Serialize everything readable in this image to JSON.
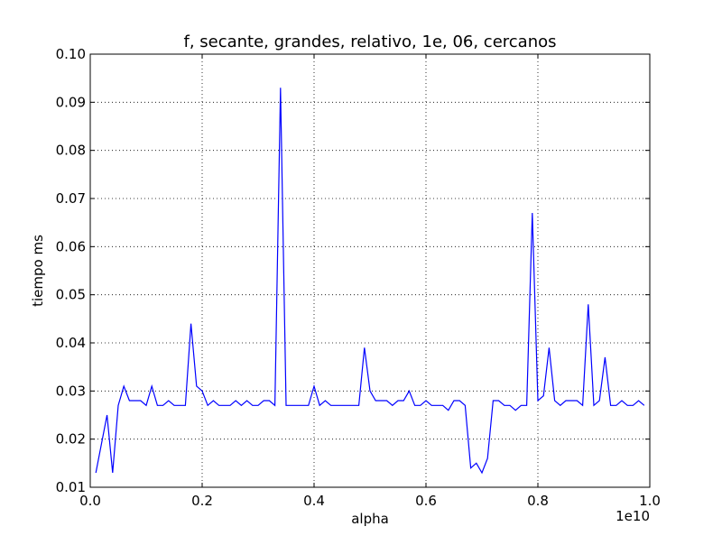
{
  "chart_data": {
    "type": "line",
    "title": "f, secante, grandes, relativo, 1e, 06, cercanos",
    "xlabel": "alpha",
    "ylabel": "tiempo ms",
    "x_offset_text": "1e10",
    "xlim": [
      0.0,
      1.0
    ],
    "ylim": [
      0.01,
      0.1
    ],
    "xticks": [
      0.0,
      0.2,
      0.4,
      0.6,
      0.8,
      1.0
    ],
    "xtick_labels": [
      "0.0",
      "0.2",
      "0.4",
      "0.6",
      "0.8",
      "1.0"
    ],
    "yticks": [
      0.01,
      0.02,
      0.03,
      0.04,
      0.05,
      0.06,
      0.07,
      0.08,
      0.09,
      0.1
    ],
    "ytick_labels": [
      "0.01",
      "0.02",
      "0.03",
      "0.04",
      "0.05",
      "0.06",
      "0.07",
      "0.08",
      "0.09",
      "0.10"
    ],
    "grid": true,
    "line_color": "#0000ff",
    "series": [
      {
        "x": [
          0.01,
          0.02,
          0.03,
          0.04,
          0.05,
          0.06,
          0.07,
          0.08,
          0.09,
          0.1,
          0.11,
          0.12,
          0.13,
          0.14,
          0.15,
          0.16,
          0.17,
          0.18,
          0.19,
          0.2,
          0.21,
          0.22,
          0.23,
          0.24,
          0.25,
          0.26,
          0.27,
          0.28,
          0.29,
          0.3,
          0.31,
          0.32,
          0.33,
          0.34,
          0.35,
          0.36,
          0.37,
          0.38,
          0.39,
          0.4,
          0.41,
          0.42,
          0.43,
          0.44,
          0.45,
          0.46,
          0.47,
          0.48,
          0.49,
          0.5,
          0.51,
          0.52,
          0.53,
          0.54,
          0.55,
          0.56,
          0.57,
          0.58,
          0.59,
          0.6,
          0.61,
          0.62,
          0.63,
          0.64,
          0.65,
          0.66,
          0.67,
          0.68,
          0.69,
          0.7,
          0.71,
          0.72,
          0.73,
          0.74,
          0.75,
          0.76,
          0.77,
          0.78,
          0.79,
          0.8,
          0.81,
          0.82,
          0.83,
          0.84,
          0.85,
          0.86,
          0.87,
          0.88,
          0.89,
          0.9,
          0.91,
          0.92,
          0.93,
          0.94,
          0.95,
          0.96,
          0.97,
          0.98,
          0.99
        ],
        "y": [
          0.013,
          0.019,
          0.025,
          0.013,
          0.027,
          0.031,
          0.028,
          0.028,
          0.028,
          0.027,
          0.031,
          0.027,
          0.027,
          0.028,
          0.027,
          0.027,
          0.027,
          0.044,
          0.031,
          0.03,
          0.027,
          0.028,
          0.027,
          0.027,
          0.027,
          0.028,
          0.027,
          0.028,
          0.027,
          0.027,
          0.028,
          0.028,
          0.027,
          0.093,
          0.027,
          0.027,
          0.027,
          0.027,
          0.027,
          0.031,
          0.027,
          0.028,
          0.027,
          0.027,
          0.027,
          0.027,
          0.027,
          0.027,
          0.039,
          0.03,
          0.028,
          0.028,
          0.028,
          0.027,
          0.028,
          0.028,
          0.03,
          0.027,
          0.027,
          0.028,
          0.027,
          0.027,
          0.027,
          0.026,
          0.028,
          0.028,
          0.027,
          0.014,
          0.015,
          0.013,
          0.016,
          0.028,
          0.028,
          0.027,
          0.027,
          0.026,
          0.027,
          0.027,
          0.067,
          0.028,
          0.029,
          0.039,
          0.028,
          0.027,
          0.028,
          0.028,
          0.028,
          0.027,
          0.048,
          0.027,
          0.028,
          0.037,
          0.027,
          0.027,
          0.028,
          0.027,
          0.027,
          0.028,
          0.027
        ]
      }
    ]
  }
}
